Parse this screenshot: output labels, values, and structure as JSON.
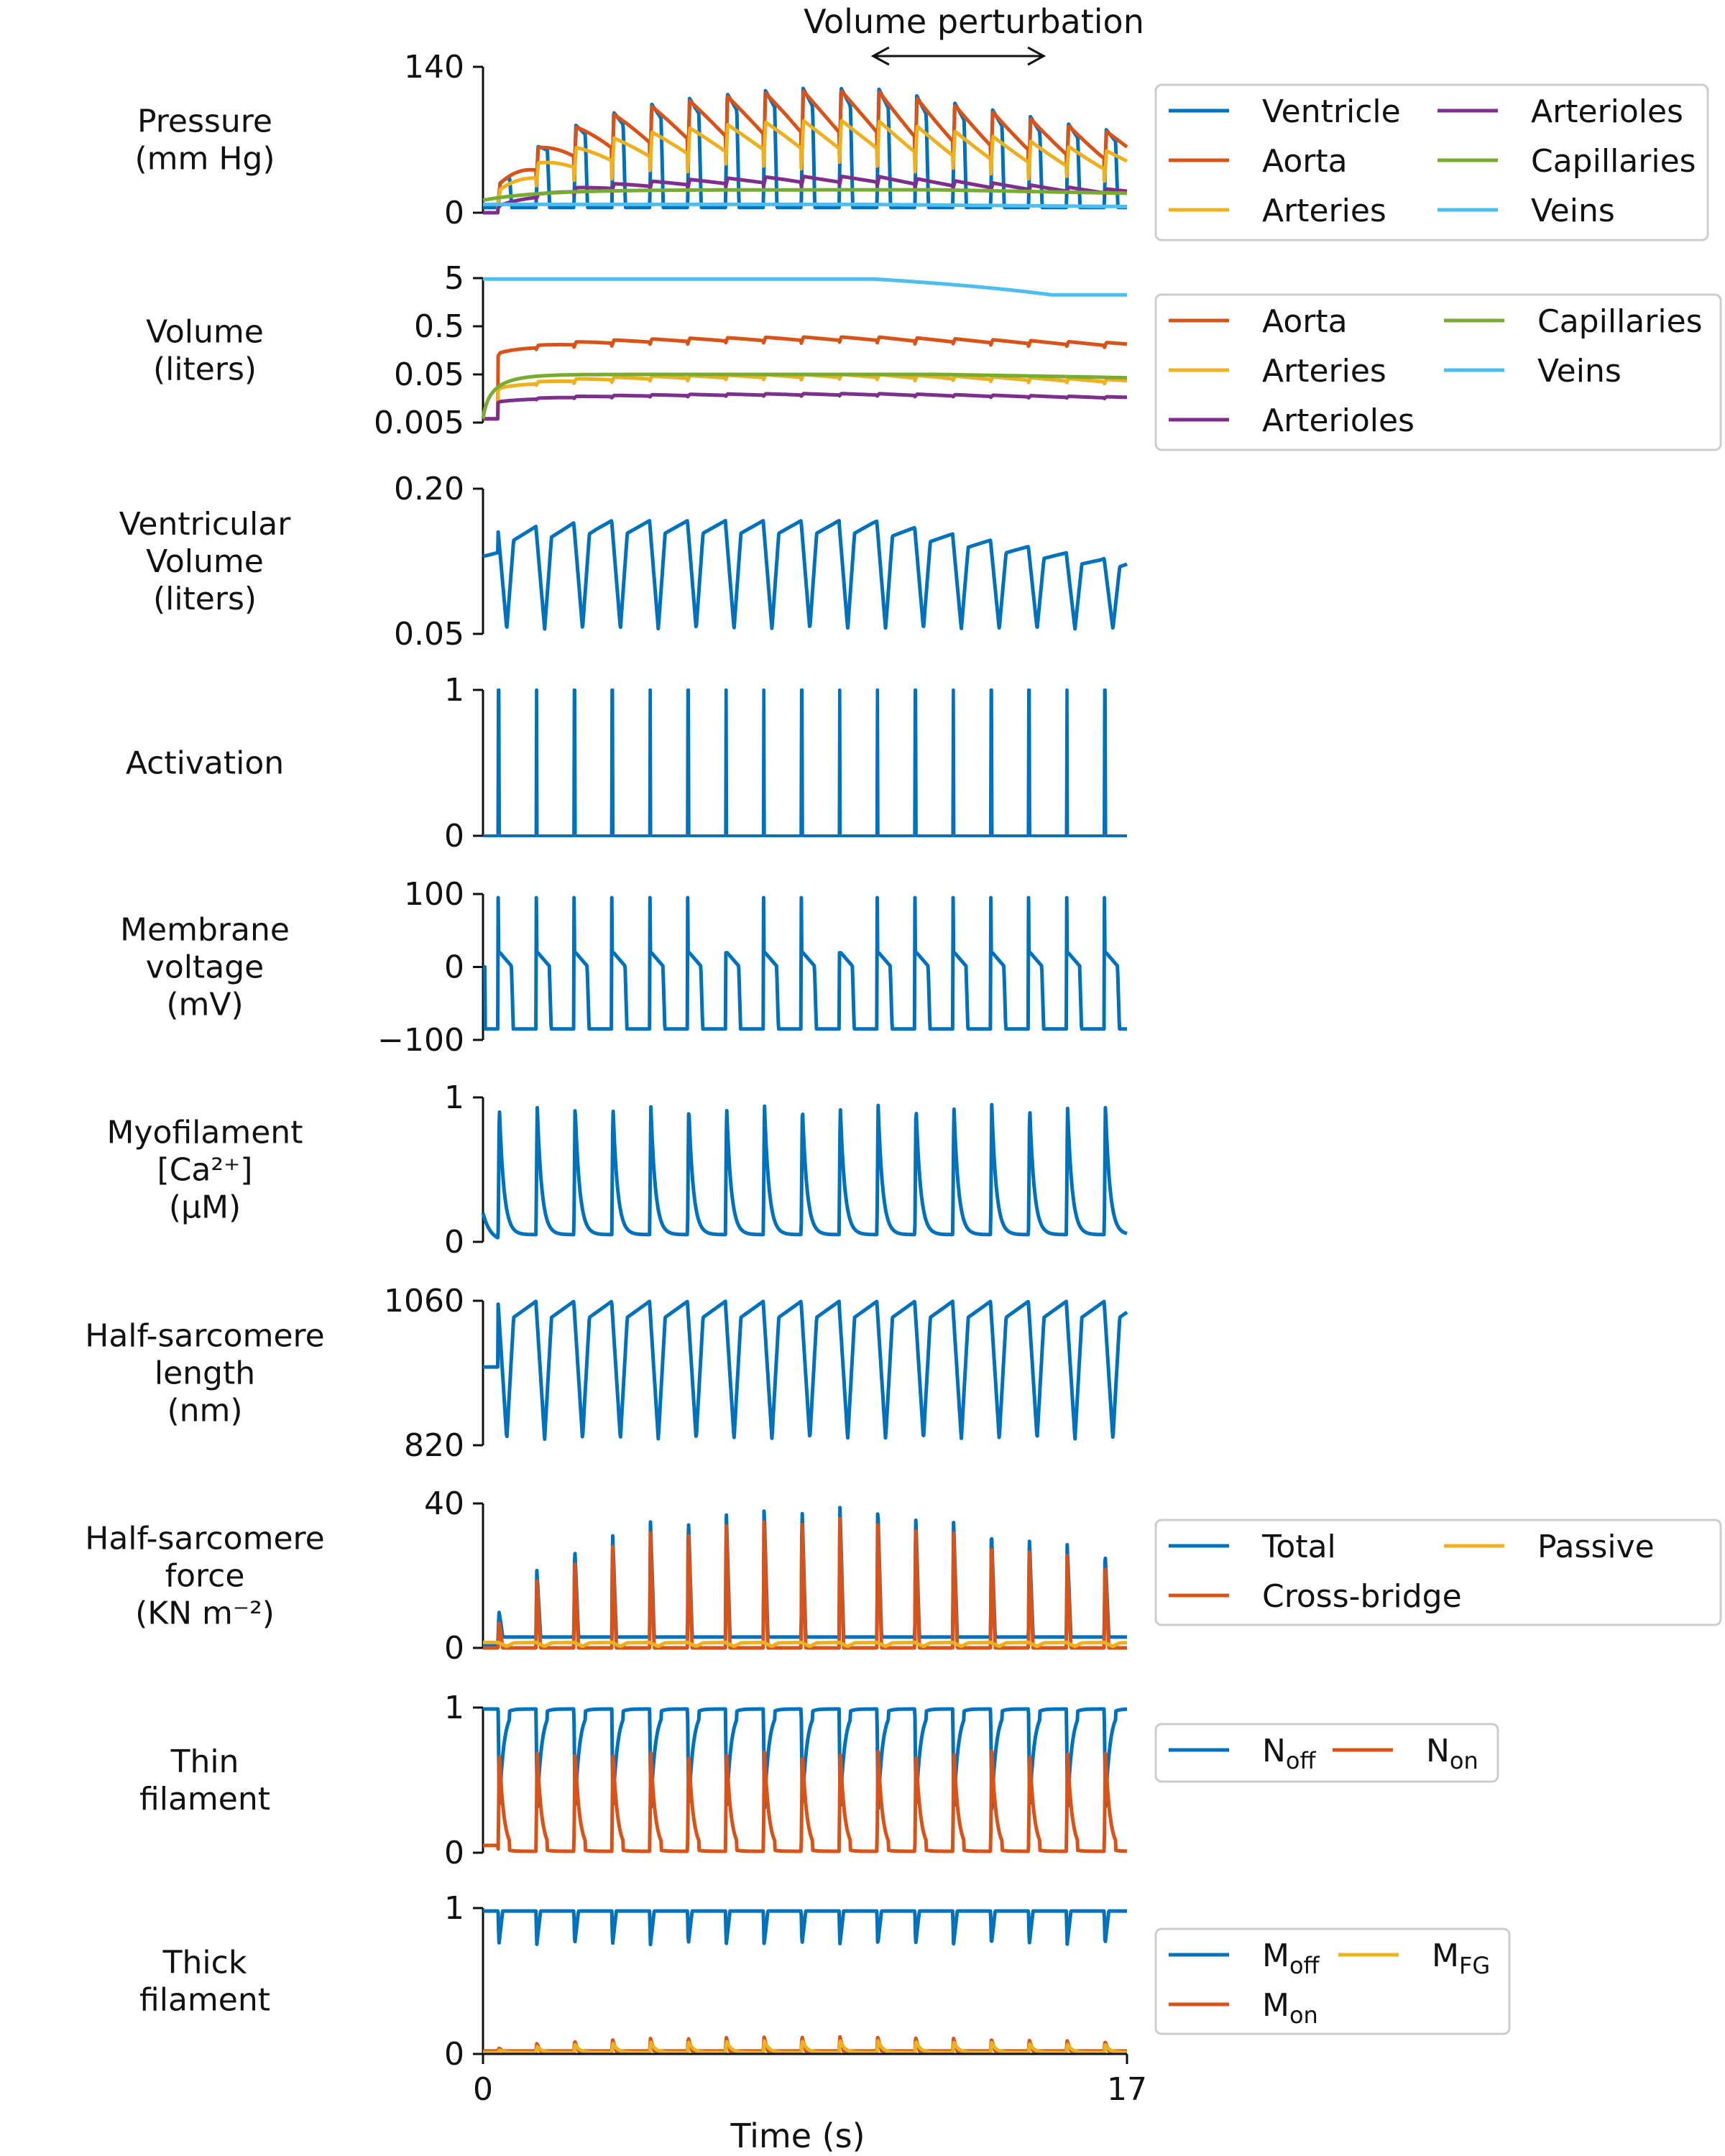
{
  "figure": {
    "xlabel": "Time (s)",
    "x_ticks": [
      "0",
      "17"
    ],
    "annotation": "Volume perturbation",
    "perturbation_window": [
      10.3,
      14.8
    ]
  },
  "chart_data": [
    {
      "type": "line",
      "ylabel": [
        "Pressure",
        "(mm Hg)"
      ],
      "ylim": [
        0,
        140
      ],
      "yticks": [
        {
          "v": 0,
          "label": "0"
        },
        {
          "v": 140,
          "label": "140"
        }
      ],
      "legend_placement": "right",
      "legend_cols": 2,
      "series": [
        {
          "name": "Ventricle",
          "color": "#0072BD",
          "kind": "ventricle",
          "min": 5,
          "max": 120
        },
        {
          "name": "Aorta",
          "color": "#D95319",
          "kind": "aorta",
          "min": 40,
          "max": 125
        },
        {
          "name": "Arteries",
          "color": "#EDB120",
          "kind": "arteries",
          "min": 35,
          "max": 100
        },
        {
          "name": "Arterioles",
          "color": "#7E2F8E",
          "kind": "arterioles",
          "min": 25,
          "max": 50
        },
        {
          "name": "Capillaries",
          "color": "#77AC30",
          "kind": "capillaries",
          "min": 12,
          "max": 22
        },
        {
          "name": "Veins",
          "color": "#4DBEEE",
          "kind": "veins",
          "min": 5,
          "max": 8
        }
      ]
    },
    {
      "type": "line",
      "ylabel": [
        "Volume",
        "(liters)"
      ],
      "yscale": "log",
      "ylim": [
        0.005,
        5
      ],
      "yticks": [
        {
          "v": 5,
          "label": "5"
        },
        {
          "v": 0.5,
          "label": "0.5"
        },
        {
          "v": 0.05,
          "label": "0.05"
        },
        {
          "v": 0.005,
          "label": "0.005"
        }
      ],
      "legend_placement": "right",
      "legend_cols": 2,
      "series": [
        {
          "name": "Aorta",
          "color": "#D95319",
          "kind": "vol_aorta",
          "min": 0.1,
          "max": 0.3
        },
        {
          "name": "Arteries",
          "color": "#EDB120",
          "kind": "vol_arteries",
          "min": 0.02,
          "max": 0.05
        },
        {
          "name": "Arterioles",
          "color": "#7E2F8E",
          "kind": "vol_arterioles",
          "min": 0.012,
          "max": 0.02
        },
        {
          "name": "Capillaries",
          "color": "#77AC30",
          "kind": "vol_capillaries",
          "min": 0.035,
          "max": 0.05
        },
        {
          "name": "Veins",
          "color": "#4DBEEE",
          "kind": "vol_veins",
          "min": 1.5,
          "max": 4.8
        }
      ]
    },
    {
      "type": "line",
      "ylabel": [
        "Ventricular",
        "Volume",
        "(liters)"
      ],
      "ylim": [
        0.05,
        0.2
      ],
      "yticks": [
        {
          "v": 0.2,
          "label": "0.20"
        },
        {
          "v": 0.05,
          "label": "0.05"
        }
      ],
      "series": [
        {
          "color": "#0072BD",
          "kind": "vent_volume",
          "min": 0.055,
          "max": 0.165
        }
      ]
    },
    {
      "type": "line",
      "ylabel": [
        "Activation"
      ],
      "ylim": [
        0,
        1
      ],
      "yticks": [
        {
          "v": 1,
          "label": "1"
        },
        {
          "v": 0,
          "label": "0"
        }
      ],
      "series": [
        {
          "color": "#0072BD",
          "kind": "activation",
          "min": 0,
          "max": 1
        }
      ]
    },
    {
      "type": "line",
      "ylabel": [
        "Membrane",
        "voltage",
        "(mV)"
      ],
      "ylim": [
        -100,
        100
      ],
      "yticks": [
        {
          "v": 100,
          "label": "100"
        },
        {
          "v": 0,
          "label": "0"
        },
        {
          "v": -100,
          "label": "−100"
        }
      ],
      "series": [
        {
          "color": "#0072BD",
          "kind": "membrane",
          "min": -85,
          "max": 95
        }
      ]
    },
    {
      "type": "line",
      "ylabel": [
        "Myofilament",
        "[Ca²⁺]",
        "(μM)"
      ],
      "ylim": [
        0,
        1
      ],
      "yticks": [
        {
          "v": 1,
          "label": "1"
        },
        {
          "v": 0,
          "label": "0"
        }
      ],
      "series": [
        {
          "color": "#0072BD",
          "kind": "calcium",
          "min": 0.05,
          "max": 0.95
        }
      ]
    },
    {
      "type": "line",
      "ylabel": [
        "Half-sarcomere",
        "length",
        "(nm)"
      ],
      "ylim": [
        820,
        1060
      ],
      "yticks": [
        {
          "v": 1060,
          "label": "1060"
        },
        {
          "v": 820,
          "label": "820"
        }
      ],
      "series": [
        {
          "color": "#0072BD",
          "kind": "hs_length",
          "min": 830,
          "max": 1055
        }
      ]
    },
    {
      "type": "line",
      "ylabel": [
        "Half-sarcomere",
        "force",
        "(KN m⁻²)"
      ],
      "ylim": [
        0,
        40
      ],
      "yticks": [
        {
          "v": 40,
          "label": "40"
        },
        {
          "v": 0,
          "label": "0"
        }
      ],
      "legend_placement": "right",
      "legend_cols": 2,
      "series": [
        {
          "name": "Total",
          "color": "#0072BD",
          "kind": "force_total",
          "min": 1,
          "max": 38
        },
        {
          "name": "Cross-bridge",
          "color": "#D95319",
          "kind": "force_xb",
          "min": 0,
          "max": 37
        },
        {
          "name": "Passive",
          "color": "#EDB120",
          "kind": "force_passive",
          "min": 0,
          "max": 1.5
        }
      ]
    },
    {
      "type": "line",
      "ylabel": [
        "Thin",
        "filament"
      ],
      "ylim": [
        0,
        1
      ],
      "yticks": [
        {
          "v": 1,
          "label": "1"
        },
        {
          "v": 0,
          "label": "0"
        }
      ],
      "legend_placement": "right",
      "legend_cols": 2,
      "series": [
        {
          "name": "N",
          "sub": "off",
          "color": "#0072BD",
          "kind": "n_off",
          "min": 0.3,
          "max": 0.99
        },
        {
          "name": "N",
          "sub": "on",
          "color": "#D95319",
          "kind": "n_on",
          "min": 0.01,
          "max": 0.7
        }
      ]
    },
    {
      "type": "line",
      "ylabel": [
        "Thick",
        "filament"
      ],
      "ylim": [
        0,
        1
      ],
      "yticks": [
        {
          "v": 1,
          "label": "1"
        },
        {
          "v": 0,
          "label": "0"
        }
      ],
      "legend_placement": "right",
      "legend_cols": 2,
      "series": [
        {
          "name": "M",
          "sub": "off",
          "color": "#0072BD",
          "kind": "m_off",
          "min": 0.75,
          "max": 0.98
        },
        {
          "name": "M",
          "sub": "on",
          "color": "#D95319",
          "kind": "m_on",
          "min": 0.02,
          "max": 0.12
        },
        {
          "name": "M",
          "sub": "FG",
          "color": "#EDB120",
          "kind": "m_fg",
          "min": 0.01,
          "max": 0.1
        }
      ]
    }
  ]
}
